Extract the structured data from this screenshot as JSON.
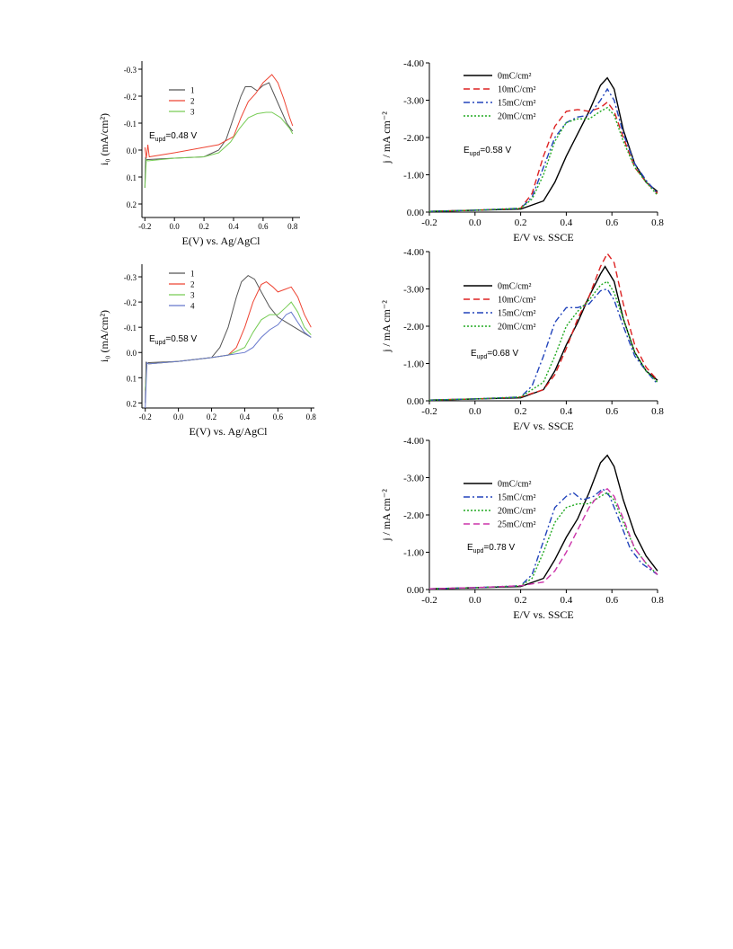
{
  "chart_data": [
    {
      "id": "p1",
      "type": "line",
      "xlabel": "E(V) vs. Ag/AgCl",
      "ylabel": "i₀ (mA/cm²)",
      "xlim": [
        -0.22,
        0.85
      ],
      "ylim": [
        0.25,
        -0.33
      ],
      "xticks": [
        -0.2,
        0.0,
        0.2,
        0.4,
        0.6,
        0.8
      ],
      "xtick_labels": [
        "-0.2",
        "0.0",
        "0.2",
        "0.4",
        "0.6",
        "0.8"
      ],
      "yticks": [
        -0.3,
        -0.2,
        -0.1,
        0.0,
        0.1,
        0.2
      ],
      "ytick_labels": [
        "-0.3",
        "-0.2",
        "-0.1",
        "0.0",
        "0.1",
        "0.2"
      ],
      "annotation": {
        "main": "E",
        "sub": "upd",
        "rest": "=0.48 V"
      },
      "series": [
        {
          "name": "1",
          "color": "#555555",
          "x": [
            -0.2,
            -0.195,
            -0.19,
            -0.18,
            0.0,
            0.2,
            0.3,
            0.35,
            0.4,
            0.45,
            0.48,
            0.52,
            0.56,
            0.6,
            0.64,
            0.68,
            0.72,
            0.76,
            0.8
          ],
          "y": [
            0.14,
            0.03,
            0.035,
            0.035,
            0.03,
            0.025,
            0.0,
            -0.04,
            -0.12,
            -0.2,
            -0.235,
            -0.235,
            -0.22,
            -0.24,
            -0.25,
            -0.2,
            -0.15,
            -0.1,
            -0.07
          ]
        },
        {
          "name": "2",
          "color": "#ee4433",
          "x": [
            -0.2,
            -0.19,
            -0.18,
            -0.17,
            0.0,
            0.2,
            0.3,
            0.4,
            0.45,
            0.5,
            0.55,
            0.6,
            0.66,
            0.7,
            0.74,
            0.78,
            0.8
          ],
          "y": [
            -0.01,
            0.03,
            -0.02,
            0.025,
            0.01,
            -0.01,
            -0.02,
            -0.05,
            -0.12,
            -0.18,
            -0.21,
            -0.25,
            -0.28,
            -0.25,
            -0.19,
            -0.12,
            -0.09
          ]
        },
        {
          "name": "3",
          "color": "#77cc55",
          "x": [
            -0.2,
            -0.19,
            -0.18,
            0.0,
            0.2,
            0.3,
            0.38,
            0.44,
            0.5,
            0.56,
            0.62,
            0.66,
            0.72,
            0.78,
            0.8
          ],
          "y": [
            0.14,
            0.035,
            0.04,
            0.03,
            0.025,
            0.01,
            -0.03,
            -0.08,
            -0.12,
            -0.135,
            -0.14,
            -0.14,
            -0.12,
            -0.08,
            -0.06
          ]
        }
      ]
    },
    {
      "id": "p2",
      "type": "line",
      "xlabel": "E(V) vs. Ag/AgCl",
      "ylabel": "i₀ (mA/cm²)",
      "xlim": [
        -0.22,
        0.82
      ],
      "ylim": [
        0.22,
        -0.35
      ],
      "xticks": [
        -0.2,
        0.0,
        0.2,
        0.4,
        0.6,
        0.8
      ],
      "xtick_labels": [
        "-0.2",
        "0.0",
        "0.2",
        "0.4",
        "0.6",
        "0.8"
      ],
      "yticks": [
        -0.3,
        -0.2,
        -0.1,
        0.0,
        0.1,
        0.2
      ],
      "ytick_labels": [
        "-0.3",
        "-0.2",
        "-0.1",
        "0.0",
        "0.1",
        "0.2"
      ],
      "annotation": {
        "main": "E",
        "sub": "upd",
        "rest": "=0.58 V"
      },
      "series": [
        {
          "name": "1",
          "color": "#555555",
          "x": [
            -0.2,
            -0.195,
            -0.19,
            -0.18,
            0.0,
            0.2,
            0.25,
            0.3,
            0.35,
            0.38,
            0.42,
            0.46,
            0.5,
            0.55,
            0.6,
            0.65,
            0.7,
            0.75,
            0.8
          ],
          "y": [
            0.2,
            0.04,
            0.045,
            0.04,
            0.035,
            0.02,
            -0.02,
            -0.1,
            -0.22,
            -0.28,
            -0.305,
            -0.29,
            -0.24,
            -0.18,
            -0.14,
            -0.12,
            -0.1,
            -0.08,
            -0.06
          ]
        },
        {
          "name": "2",
          "color": "#ee4433",
          "x": [
            -0.2,
            -0.19,
            -0.18,
            0.0,
            0.2,
            0.3,
            0.35,
            0.4,
            0.45,
            0.5,
            0.53,
            0.57,
            0.6,
            0.64,
            0.68,
            0.72,
            0.76,
            0.8
          ],
          "y": [
            0.15,
            0.04,
            0.045,
            0.035,
            0.02,
            0.01,
            -0.02,
            -0.1,
            -0.2,
            -0.27,
            -0.28,
            -0.26,
            -0.24,
            -0.25,
            -0.26,
            -0.22,
            -0.15,
            -0.1
          ]
        },
        {
          "name": "3",
          "color": "#77cc55",
          "x": [
            -0.2,
            -0.19,
            -0.18,
            0.0,
            0.2,
            0.3,
            0.4,
            0.45,
            0.5,
            0.55,
            0.6,
            0.65,
            0.68,
            0.72,
            0.76,
            0.8
          ],
          "y": [
            0.15,
            0.04,
            0.045,
            0.035,
            0.02,
            0.01,
            -0.02,
            -0.08,
            -0.13,
            -0.15,
            -0.15,
            -0.18,
            -0.2,
            -0.16,
            -0.1,
            -0.07
          ]
        },
        {
          "name": "4",
          "color": "#6677cc",
          "x": [
            -0.2,
            -0.19,
            -0.18,
            0.0,
            0.2,
            0.3,
            0.4,
            0.45,
            0.5,
            0.55,
            0.6,
            0.65,
            0.68,
            0.72,
            0.76,
            0.8
          ],
          "y": [
            0.22,
            0.04,
            0.045,
            0.035,
            0.02,
            0.01,
            0.0,
            -0.02,
            -0.06,
            -0.09,
            -0.11,
            -0.15,
            -0.16,
            -0.12,
            -0.08,
            -0.06
          ]
        }
      ]
    },
    {
      "id": "p3",
      "type": "line",
      "xlabel": "E/V vs. SSCE",
      "ylabel": "j / mA cm⁻²",
      "xlim": [
        -0.2,
        0.8
      ],
      "ylim": [
        0.0,
        -4.0
      ],
      "xticks": [
        -0.2,
        0.0,
        0.2,
        0.4,
        0.6,
        0.8
      ],
      "xtick_labels": [
        "-0.2",
        "0.0",
        "0.2",
        "0.4",
        "0.6",
        "0.8"
      ],
      "yticks": [
        0.0,
        -1.0,
        -2.0,
        -3.0,
        -4.0
      ],
      "ytick_labels": [
        "0.00",
        "-1.00",
        "-2.00",
        "-3.00",
        "-4.00"
      ],
      "annotation": {
        "main": "E",
        "sub": "upd",
        "rest": "=0.58 V"
      },
      "series": [
        {
          "name": "0mC/cm²",
          "color": "#000000",
          "dash": "",
          "x": [
            -0.2,
            0.0,
            0.2,
            0.3,
            0.35,
            0.4,
            0.45,
            0.5,
            0.55,
            0.58,
            0.61,
            0.65,
            0.7,
            0.75,
            0.8
          ],
          "y": [
            -0.02,
            -0.05,
            -0.08,
            -0.3,
            -0.8,
            -1.5,
            -2.1,
            -2.7,
            -3.4,
            -3.6,
            -3.3,
            -2.2,
            -1.3,
            -0.8,
            -0.55
          ]
        },
        {
          "name": "10mC/cm²",
          "color": "#dd2222",
          "dash": "7,4",
          "x": [
            -0.2,
            0.0,
            0.2,
            0.25,
            0.3,
            0.35,
            0.4,
            0.45,
            0.5,
            0.55,
            0.58,
            0.61,
            0.65,
            0.7,
            0.75,
            0.8
          ],
          "y": [
            -0.02,
            -0.05,
            -0.1,
            -0.5,
            -1.5,
            -2.3,
            -2.7,
            -2.75,
            -2.7,
            -2.8,
            -2.95,
            -2.7,
            -2.0,
            -1.2,
            -0.8,
            -0.5
          ]
        },
        {
          "name": "15mC/cm²",
          "color": "#2244bb",
          "dash": "7,3,2,3",
          "x": [
            -0.2,
            0.0,
            0.2,
            0.25,
            0.3,
            0.35,
            0.4,
            0.45,
            0.5,
            0.55,
            0.58,
            0.61,
            0.65,
            0.7,
            0.75,
            0.8
          ],
          "y": [
            -0.02,
            -0.05,
            -0.1,
            -0.4,
            -1.2,
            -2.0,
            -2.4,
            -2.55,
            -2.6,
            -3.0,
            -3.3,
            -3.0,
            -2.1,
            -1.3,
            -0.85,
            -0.5
          ]
        },
        {
          "name": "20mC/cm²",
          "color": "#22aa22",
          "dash": "2,2",
          "x": [
            -0.2,
            0.0,
            0.2,
            0.25,
            0.3,
            0.35,
            0.4,
            0.45,
            0.5,
            0.55,
            0.58,
            0.61,
            0.65,
            0.7,
            0.75,
            0.8
          ],
          "y": [
            -0.02,
            -0.05,
            -0.1,
            -0.35,
            -1.0,
            -1.9,
            -2.4,
            -2.5,
            -2.5,
            -2.7,
            -2.8,
            -2.6,
            -1.9,
            -1.2,
            -0.8,
            -0.45
          ]
        }
      ]
    },
    {
      "id": "p4",
      "type": "line",
      "xlabel": "E/V vs. SSCE",
      "ylabel": "j / mA cm⁻²",
      "xlim": [
        -0.2,
        0.8
      ],
      "ylim": [
        0.0,
        -4.0
      ],
      "xticks": [
        -0.2,
        0.0,
        0.2,
        0.4,
        0.6,
        0.8
      ],
      "xtick_labels": [
        "-0.2",
        "0.0",
        "0.2",
        "0.4",
        "0.6",
        "0.8"
      ],
      "yticks": [
        0.0,
        -1.0,
        -2.0,
        -3.0,
        -4.0
      ],
      "ytick_labels": [
        "0.00",
        "-1.00",
        "-2.00",
        "-3.00",
        "-4.00"
      ],
      "annotation": {
        "main": "E",
        "sub": "upd",
        "rest": "=0.68 V"
      },
      "series": [
        {
          "name": "0mC/cm²",
          "color": "#000000",
          "dash": "",
          "x": [
            -0.2,
            0.0,
            0.2,
            0.3,
            0.35,
            0.4,
            0.45,
            0.5,
            0.55,
            0.57,
            0.61,
            0.65,
            0.7,
            0.75,
            0.8
          ],
          "y": [
            -0.02,
            -0.05,
            -0.08,
            -0.3,
            -0.8,
            -1.5,
            -2.1,
            -2.8,
            -3.4,
            -3.6,
            -3.2,
            -2.2,
            -1.3,
            -0.8,
            -0.55
          ]
        },
        {
          "name": "10mC/cm²",
          "color": "#dd2222",
          "dash": "7,4",
          "x": [
            -0.2,
            0.0,
            0.2,
            0.3,
            0.35,
            0.4,
            0.45,
            0.5,
            0.55,
            0.58,
            0.61,
            0.65,
            0.7,
            0.75,
            0.8
          ],
          "y": [
            -0.02,
            -0.05,
            -0.1,
            -0.3,
            -0.7,
            -1.4,
            -2.2,
            -2.8,
            -3.6,
            -3.95,
            -3.7,
            -2.6,
            -1.5,
            -0.9,
            -0.55
          ]
        },
        {
          "name": "15mC/cm²",
          "color": "#2244bb",
          "dash": "7,3,2,3",
          "x": [
            -0.2,
            0.0,
            0.2,
            0.25,
            0.3,
            0.35,
            0.4,
            0.45,
            0.5,
            0.55,
            0.58,
            0.61,
            0.65,
            0.7,
            0.75,
            0.8
          ],
          "y": [
            -0.02,
            -0.05,
            -0.1,
            -0.4,
            -1.2,
            -2.1,
            -2.5,
            -2.5,
            -2.6,
            -2.95,
            -3.0,
            -2.7,
            -2.0,
            -1.2,
            -0.8,
            -0.45
          ]
        },
        {
          "name": "20mC/cm²",
          "color": "#22aa22",
          "dash": "2,2",
          "x": [
            -0.2,
            0.0,
            0.2,
            0.3,
            0.35,
            0.4,
            0.45,
            0.5,
            0.55,
            0.58,
            0.61,
            0.65,
            0.7,
            0.75,
            0.8
          ],
          "y": [
            -0.02,
            -0.05,
            -0.1,
            -0.5,
            -1.2,
            -2.0,
            -2.4,
            -2.7,
            -3.1,
            -3.2,
            -2.9,
            -2.2,
            -1.3,
            -0.8,
            -0.5
          ]
        }
      ]
    },
    {
      "id": "p5",
      "type": "line",
      "xlabel": "E/V vs. SSCE",
      "ylabel": "j / mA cm⁻²",
      "xlim": [
        -0.2,
        0.8
      ],
      "ylim": [
        0.0,
        -4.0
      ],
      "xticks": [
        -0.2,
        0.0,
        0.2,
        0.4,
        0.6,
        0.8
      ],
      "xtick_labels": [
        "-0.2",
        "0.0",
        "0.2",
        "0.4",
        "0.6",
        "0.8"
      ],
      "yticks": [
        0.0,
        -1.0,
        -2.0,
        -3.0,
        -4.0
      ],
      "ytick_labels": [
        "0.00",
        "-1.00",
        "-2.00",
        "-3.00",
        "-4.00"
      ],
      "annotation": {
        "main": "E",
        "sub": "upd",
        "rest": "=0.78 V"
      },
      "series": [
        {
          "name": "0mC/cm²",
          "color": "#000000",
          "dash": "",
          "x": [
            -0.2,
            0.0,
            0.2,
            0.3,
            0.35,
            0.4,
            0.45,
            0.5,
            0.55,
            0.58,
            0.61,
            0.65,
            0.7,
            0.75,
            0.8
          ],
          "y": [
            -0.02,
            -0.05,
            -0.08,
            -0.3,
            -0.8,
            -1.4,
            -1.9,
            -2.6,
            -3.4,
            -3.6,
            -3.3,
            -2.4,
            -1.5,
            -0.9,
            -0.5
          ]
        },
        {
          "name": "15mC/cm²",
          "color": "#2244bb",
          "dash": "7,3,2,3",
          "x": [
            -0.2,
            0.0,
            0.2,
            0.25,
            0.3,
            0.35,
            0.4,
            0.43,
            0.47,
            0.52,
            0.56,
            0.59,
            0.63,
            0.68,
            0.73,
            0.8
          ],
          "y": [
            -0.02,
            -0.05,
            -0.1,
            -0.4,
            -1.3,
            -2.2,
            -2.5,
            -2.6,
            -2.4,
            -2.5,
            -2.7,
            -2.5,
            -1.9,
            -1.1,
            -0.7,
            -0.4
          ]
        },
        {
          "name": "20mC/cm²",
          "color": "#22aa22",
          "dash": "2,2",
          "x": [
            -0.2,
            0.0,
            0.2,
            0.25,
            0.3,
            0.35,
            0.4,
            0.45,
            0.5,
            0.55,
            0.58,
            0.61,
            0.65,
            0.7,
            0.75,
            0.8
          ],
          "y": [
            -0.02,
            -0.05,
            -0.1,
            -0.3,
            -1.0,
            -1.8,
            -2.2,
            -2.3,
            -2.3,
            -2.5,
            -2.6,
            -2.4,
            -1.8,
            -1.1,
            -0.7,
            -0.4
          ]
        },
        {
          "name": "25mC/cm²",
          "color": "#cc33aa",
          "dash": "7,4",
          "x": [
            -0.2,
            0.0,
            0.2,
            0.3,
            0.35,
            0.4,
            0.45,
            0.5,
            0.55,
            0.58,
            0.61,
            0.65,
            0.7,
            0.75,
            0.8
          ],
          "y": [
            -0.02,
            -0.05,
            -0.1,
            -0.2,
            -0.5,
            -1.0,
            -1.6,
            -2.2,
            -2.6,
            -2.7,
            -2.5,
            -1.9,
            -1.1,
            -0.7,
            -0.4
          ]
        }
      ]
    }
  ]
}
